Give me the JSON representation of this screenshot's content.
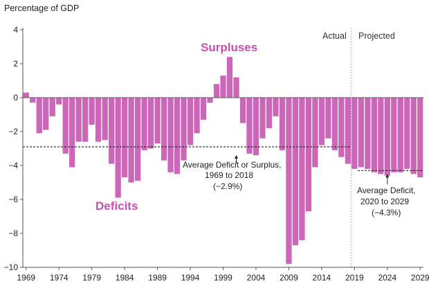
{
  "chart_data": {
    "type": "bar",
    "title": "",
    "ylabel": "Percentage of GDP",
    "xlabel": "",
    "ylim": [
      -10,
      4
    ],
    "y_ticks": [
      "4",
      "2",
      "0",
      "−2",
      "−4",
      "−6",
      "−8",
      "−10"
    ],
    "y_tick_values": [
      4,
      2,
      0,
      -2,
      -4,
      -6,
      -8,
      -10
    ],
    "x_start_year": 1969,
    "x_end_year": 2029,
    "x_tick_labels": [
      "1969",
      "1974",
      "1979",
      "1984",
      "1989",
      "1994",
      "1999",
      "2004",
      "2009",
      "2014",
      "2019",
      "2024",
      "2029"
    ],
    "x_tick_years": [
      1969,
      1974,
      1979,
      1984,
      1989,
      1994,
      1999,
      2004,
      2009,
      2014,
      2019,
      2024,
      2029
    ],
    "grid": false,
    "legend": "none",
    "bar_color": "#cc66b8",
    "categories": [
      1969,
      1970,
      1971,
      1972,
      1973,
      1974,
      1975,
      1976,
      1977,
      1978,
      1979,
      1980,
      1981,
      1982,
      1983,
      1984,
      1985,
      1986,
      1987,
      1988,
      1989,
      1990,
      1991,
      1992,
      1993,
      1994,
      1995,
      1996,
      1997,
      1998,
      1999,
      2000,
      2001,
      2002,
      2003,
      2004,
      2005,
      2006,
      2007,
      2008,
      2009,
      2010,
      2011,
      2012,
      2013,
      2014,
      2015,
      2016,
      2017,
      2018,
      2019,
      2020,
      2021,
      2022,
      2023,
      2024,
      2025,
      2026,
      2027,
      2028,
      2029
    ],
    "values": [
      0.3,
      -0.3,
      -2.1,
      -1.9,
      -1.1,
      -0.4,
      -3.3,
      -4.1,
      -2.6,
      -2.6,
      -1.6,
      -2.6,
      -2.5,
      -3.9,
      -5.9,
      -4.7,
      -5.0,
      -4.9,
      -3.1,
      -3.0,
      -2.7,
      -3.7,
      -4.4,
      -4.5,
      -3.7,
      -2.8,
      -2.1,
      -1.3,
      -0.3,
      0.8,
      1.3,
      2.4,
      1.2,
      -1.5,
      -3.3,
      -3.4,
      -2.4,
      -1.8,
      -1.1,
      -3.1,
      -9.8,
      -8.7,
      -8.4,
      -6.7,
      -4.1,
      -2.8,
      -2.4,
      -3.1,
      -3.5,
      -3.9,
      -4.2,
      -4.1,
      -4.2,
      -4.4,
      -4.5,
      -4.6,
      -4.4,
      -4.4,
      -4.2,
      -4.5,
      -4.7
    ],
    "average_lines": [
      {
        "label": "Average Deficit or Surplus, 1969 to 2018 (−2.9%)",
        "value": -2.9,
        "from_year": 1969,
        "to_year": 2018
      },
      {
        "label": "Average Deficit, 2020 to 2029 (−4.3%)",
        "value": -4.3,
        "from_year": 2020,
        "to_year": 2029
      }
    ],
    "divider_year": 2018.5,
    "section_labels": {
      "actual": "Actual",
      "projected": "Projected"
    },
    "annotations": {
      "surpluses": "Surpluses",
      "deficits": "Deficits",
      "avg1_line1": "Average Deficit or Surplus,",
      "avg1_line2": "1969 to 2018",
      "avg1_line3": "(−2.9%)",
      "avg2_line1": "Average Deficit,",
      "avg2_line2": "2020 to 2029",
      "avg2_line3": "(−4.3%)"
    },
    "annotation_color": "#c64fb0"
  }
}
